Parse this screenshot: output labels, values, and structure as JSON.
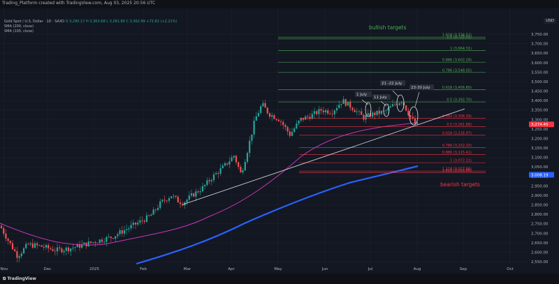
{
  "header": {
    "title": "Trading_Platform created with TradingView.com, Aug 03, 2025 20:56 UTC",
    "currency": "USD"
  },
  "legend": {
    "symbol": "Gold Spot / U.S. Dollar · 1D · SAXO",
    "ohlc": "O 3,290.17  H 3,363.68  L 3,281.80  C 3,362.99  +72.82 (+2.21%)",
    "sma200": "SMA (200, close)",
    "sma100": "SMA (100, close)"
  },
  "annotations": {
    "bullish": "bullish targets",
    "bearish": "bearish targets",
    "july1": "1 July",
    "july11": "11 July",
    "july21_22": "21 -22 July",
    "july23_30": "23-30 July"
  },
  "colors": {
    "bull": "#26a69a",
    "bear": "#ef5350",
    "sma200": "#2962ff",
    "sma100": "#c735b8",
    "fib_bull": "#4caf50",
    "fib_bear": "#f23645"
  },
  "price_labels": {
    "current": "3,274.45",
    "sma200": "3,008.19"
  },
  "footer": {
    "brand": "TradingView"
  },
  "chart_data": {
    "type": "candlestick",
    "y_ticks": [
      "3,750.00",
      "3,700.00",
      "3,650.00",
      "3,600.00",
      "3,550.00",
      "3,500.00",
      "3,450.00",
      "3,400.00",
      "3,350.00",
      "3,300.00",
      "3,250.00",
      "3,200.00",
      "3,150.00",
      "3,100.00",
      "3,050.00",
      "3,000.00",
      "2,950.00",
      "2,900.00",
      "2,850.00",
      "2,800.00",
      "2,750.00",
      "2,700.00",
      "2,650.00",
      "2,600.00",
      "2,550.00"
    ],
    "x_ticks": [
      "Nov",
      "Dec",
      "2025",
      "Feb",
      "Mar",
      "Apr",
      "May",
      "Jun",
      "Jul",
      "Aug",
      "Sep",
      "Oct"
    ],
    "ylim": [
      2525,
      3790
    ],
    "fib_levels_bull": [
      {
        "label": "1.618 (3,734.52)",
        "value": 3734.52
      },
      {
        "label": "1.5 (3,725.01)",
        "value": 3725.01
      },
      {
        "label": "1 (3,664.31)",
        "value": 3664.31
      },
      {
        "label": "0.886 (3,602.28)",
        "value": 3602.28
      },
      {
        "label": "0.786 (3,548.05)",
        "value": 3548.05
      },
      {
        "label": "0.618 (3,456.80)",
        "value": 3456.8
      },
      {
        "label": "0.5 (3,392.70)",
        "value": 3392.7
      }
    ],
    "fib_levels_bear": [
      {
        "label": "0.382 (3,306.39)",
        "value": 3306.39
      },
      {
        "label": "0.5 (3,261.88)",
        "value": 3261.88
      },
      {
        "label": "0.618 (3,216.97)",
        "value": 3216.97
      },
      {
        "label": "0.786 (3,152.20)",
        "value": 3152.2
      },
      {
        "label": "0.886 (3,115.41)",
        "value": 3115.41
      },
      {
        "label": "1 (3,072.21)",
        "value": 3072.21
      },
      {
        "label": "1.118 (3,027.86)",
        "value": 3027.86
      },
      {
        "label": "1.618 (3,018.96)",
        "value": 3018.96
      }
    ]
  }
}
